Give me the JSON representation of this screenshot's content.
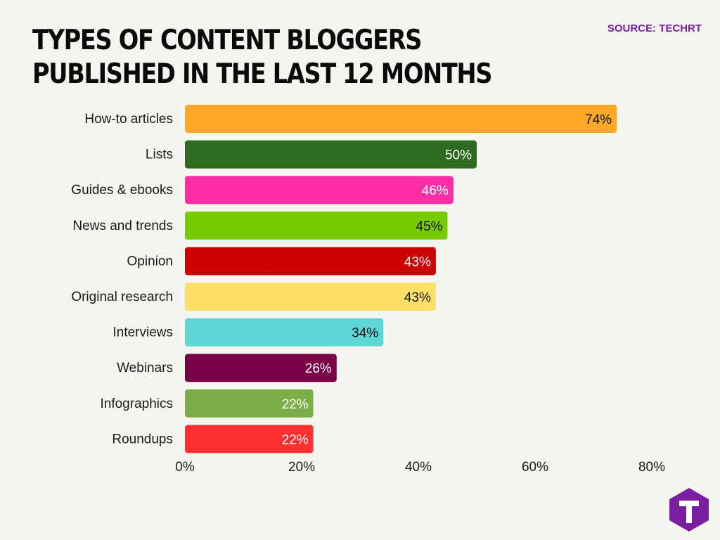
{
  "header": {
    "title": "TYPES OF CONTENT BLOGGERS PUBLISHED IN THE LAST 12 MONTHS",
    "source": "SOURCE: TECHRT"
  },
  "chart_data": {
    "type": "bar",
    "orientation": "horizontal",
    "title": "TYPES OF CONTENT BLOGGERS PUBLISHED IN THE LAST 12 MONTHS",
    "xlabel": "",
    "ylabel": "",
    "categories": [
      "How-to articles",
      "Lists",
      "Guides & ebooks",
      "News and trends",
      "Opinion",
      "Original research",
      "Interviews",
      "Webinars",
      "Infographics",
      "Roundups"
    ],
    "values": [
      74,
      50,
      46,
      45,
      43,
      43,
      34,
      26,
      22,
      22
    ],
    "data_labels": [
      "74%",
      "50%",
      "46%",
      "45%",
      "43%",
      "43%",
      "34%",
      "26%",
      "22%",
      "22%"
    ],
    "colors": [
      "#ffa726",
      "#2e6a1f",
      "#ff2da6",
      "#76cc00",
      "#cc0000",
      "#ffe066",
      "#5ed6d6",
      "#7a0048",
      "#7caf48",
      "#ff3030"
    ],
    "label_colors": [
      "#111111",
      "#ffffff",
      "#ffffff",
      "#111111",
      "#ffffff",
      "#111111",
      "#111111",
      "#ffffff",
      "#ffffff",
      "#ffffff"
    ],
    "xlim": [
      0,
      80
    ],
    "xticks": [
      0,
      20,
      40,
      60,
      80
    ],
    "xtick_labels": [
      "0%",
      "20%",
      "40%",
      "60%",
      "80%"
    ],
    "grid": false,
    "legend": "none"
  },
  "brand": {
    "logo_icon": "techrt-logo-icon",
    "logo_color": "#7b1fa2"
  }
}
